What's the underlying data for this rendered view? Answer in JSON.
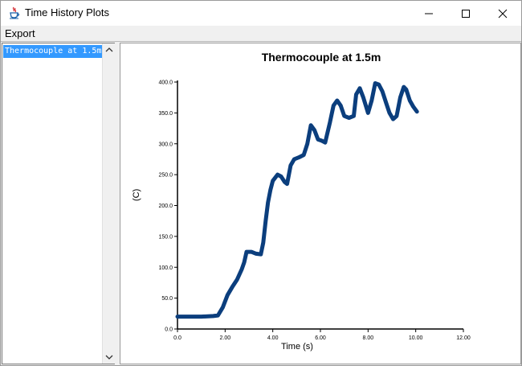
{
  "window": {
    "title": "Time History Plots",
    "icon": "java-coffee-cup-icon"
  },
  "menu": {
    "items": [
      "Export"
    ]
  },
  "list": {
    "items": [
      "Thermocouple at 1.5m"
    ],
    "selected_index": 0
  },
  "colors": {
    "selection": "#3399ff",
    "series": "#0b3e7d"
  },
  "chart_data": {
    "type": "line",
    "title": "Thermocouple at 1.5m",
    "xlabel": "Time (s)",
    "ylabel": "(C)",
    "xlim": [
      0,
      12
    ],
    "ylim": [
      0,
      400
    ],
    "x_ticks": [
      "0.0",
      "2.00",
      "4.00",
      "6.00",
      "8.00",
      "10.00",
      "12.00"
    ],
    "y_ticks": [
      "0.0",
      "50.0",
      "100.0",
      "150.0",
      "200.0",
      "250.0",
      "300.0",
      "350.0",
      "400.0"
    ],
    "grid": false,
    "series": [
      {
        "x": [
          0,
          0.5,
          1.0,
          1.5,
          1.7,
          1.9,
          2.1,
          2.3,
          2.5,
          2.7,
          2.8,
          2.9,
          3.1,
          3.3,
          3.5,
          3.6,
          3.7,
          3.8,
          3.9,
          4.0,
          4.2,
          4.35,
          4.5,
          4.6,
          4.75,
          4.9,
          5.1,
          5.3,
          5.45,
          5.6,
          5.75,
          5.9,
          6.05,
          6.2,
          6.4,
          6.55,
          6.7,
          6.85,
          7.0,
          7.2,
          7.4,
          7.5,
          7.65,
          7.8,
          8.0,
          8.15,
          8.3,
          8.45,
          8.6,
          8.75,
          8.9,
          9.05,
          9.2,
          9.35,
          9.5,
          9.6,
          9.75,
          9.9,
          10.05
        ],
        "y": [
          20,
          20,
          20,
          21,
          22,
          35,
          55,
          68,
          80,
          97,
          108,
          125,
          125,
          122,
          121,
          140,
          175,
          205,
          225,
          240,
          250,
          247,
          238,
          235,
          265,
          275,
          278,
          282,
          300,
          330,
          322,
          307,
          305,
          302,
          335,
          362,
          370,
          362,
          345,
          342,
          345,
          380,
          390,
          375,
          350,
          370,
          398,
          396,
          385,
          367,
          350,
          340,
          345,
          375,
          392,
          388,
          370,
          360,
          352
        ]
      }
    ]
  }
}
